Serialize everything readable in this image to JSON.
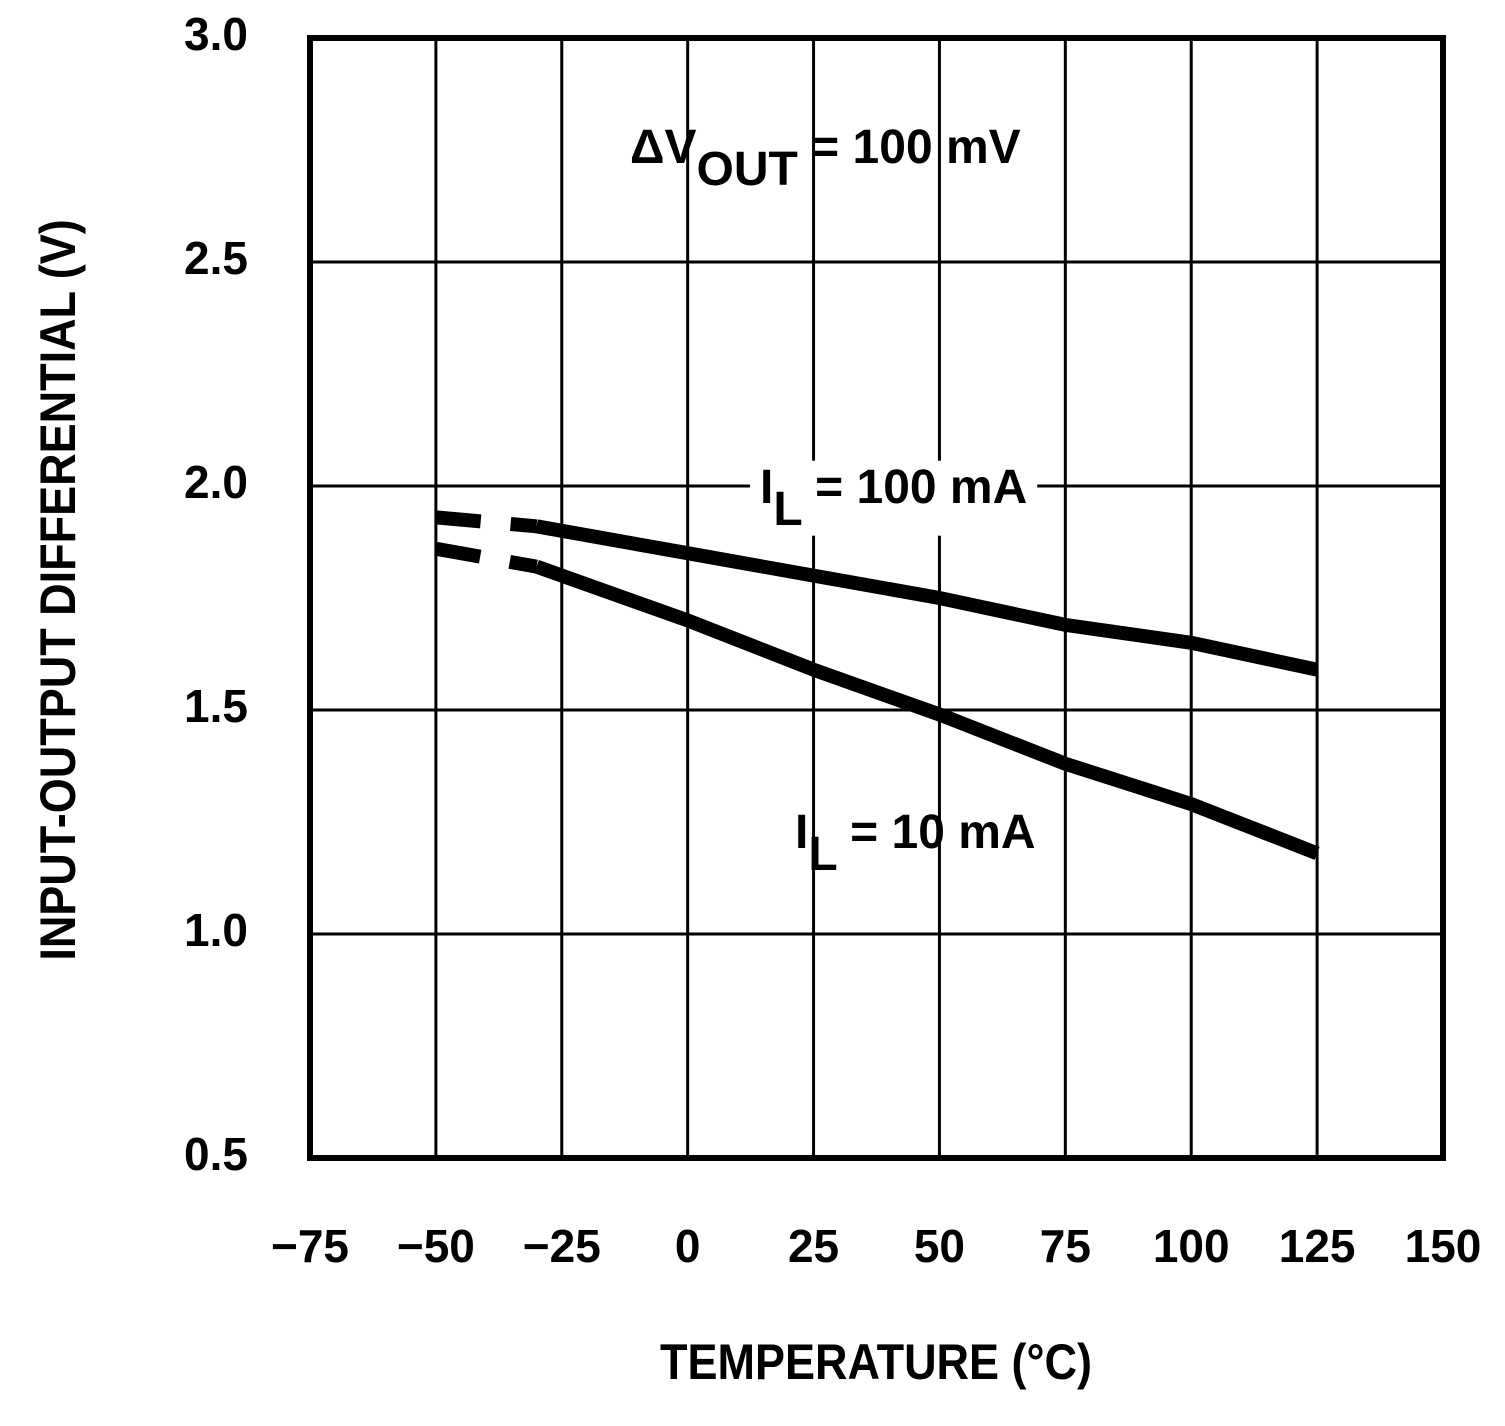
{
  "chart_data": {
    "type": "line",
    "x_label": "TEMPERATURE (°C)",
    "y_label": "INPUT-OUTPUT DIFFERENTIAL (V)",
    "annotation": {
      "main": "ΔV",
      "sub": "OUT",
      "rest": " = 100 mV"
    },
    "x": [
      -50,
      -30,
      0,
      25,
      50,
      75,
      100,
      125
    ],
    "series": [
      {
        "label": {
          "main": "I",
          "sub": "L",
          "rest": " = 100 mA"
        },
        "color": "#000000",
        "dash_first_segment": true,
        "values": [
          1.93,
          1.91,
          1.85,
          1.8,
          1.75,
          1.69,
          1.65,
          1.59
        ]
      },
      {
        "label": {
          "main": "I",
          "sub": "L",
          "rest": " = 10 mA"
        },
        "color": "#000000",
        "dash_first_segment": true,
        "values": [
          1.86,
          1.82,
          1.7,
          1.59,
          1.49,
          1.38,
          1.29,
          1.18
        ]
      }
    ],
    "xlim": [
      -75,
      150
    ],
    "xticks": [
      {
        "value": -75,
        "label": "−75"
      },
      {
        "value": -50,
        "label": "−50"
      },
      {
        "value": -25,
        "label": "−25"
      },
      0,
      25,
      50,
      75,
      100,
      125,
      150
    ],
    "ylim": [
      0.5,
      3
    ],
    "yticks": [
      0.5,
      {
        "value": 1,
        "label": "1.0"
      },
      1.5,
      {
        "value": 2,
        "label": "2.0"
      },
      2.5,
      {
        "value": 3,
        "label": "3.0"
      }
    ],
    "grid": true
  }
}
